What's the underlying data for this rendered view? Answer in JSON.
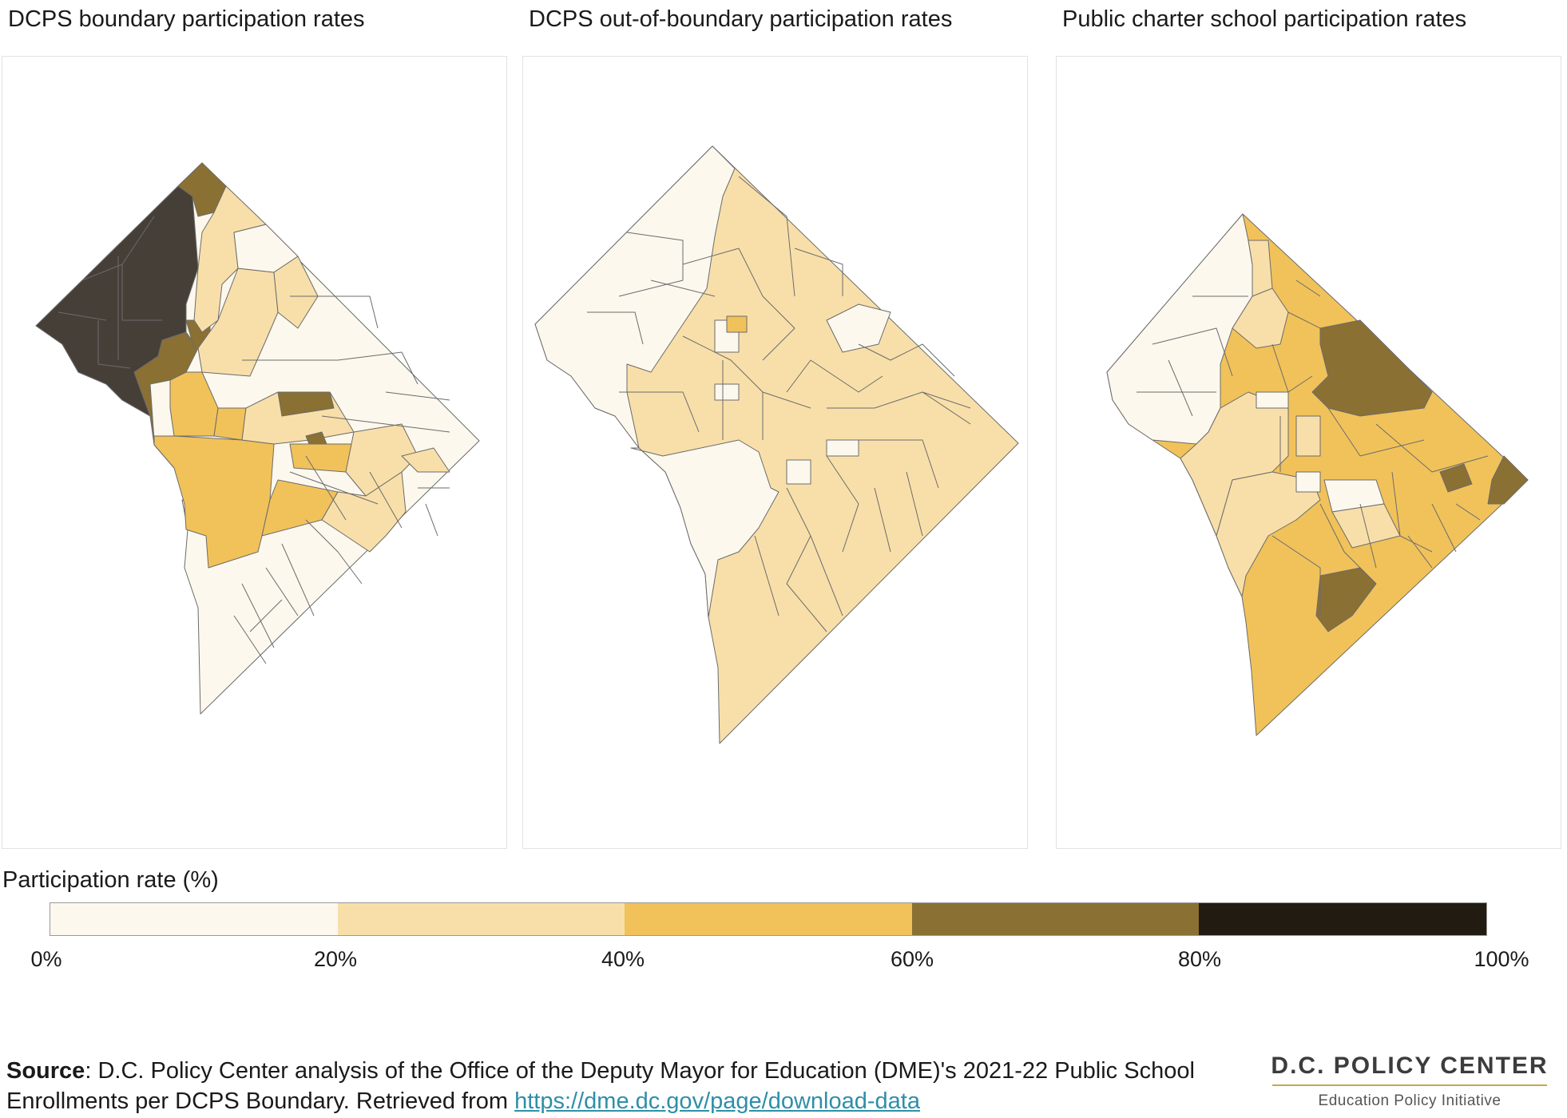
{
  "panels": [
    {
      "title": "DCPS boundary participation rates"
    },
    {
      "title": "DCPS out-of-boundary participation rates"
    },
    {
      "title": "Public charter school participation rates"
    }
  ],
  "legend": {
    "title": "Participation rate (%)",
    "colors": [
      "#fcf8ee",
      "#f8dfa9",
      "#f1c25a",
      "#8b7033",
      "#211b11"
    ],
    "ticks": [
      "0%",
      "20%",
      "40%",
      "60%",
      "80%",
      "100%"
    ]
  },
  "source": {
    "label": "Source",
    "text": ": D.C. Policy Center analysis of the Office of the Deputy Mayor for Education (DME)'s 2021-22 Public School Enrollments per DCPS Boundary. Retrieved from ",
    "link": "https://dme.dc.gov/page/download-data"
  },
  "logo": {
    "name": "D.C. POLICY CENTER",
    "subtitle": "Education Policy Initiative"
  }
}
